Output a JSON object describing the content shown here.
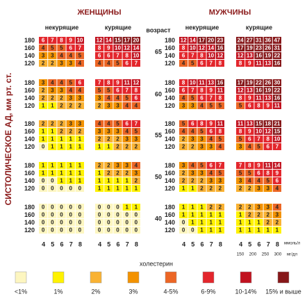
{
  "women_header": "ЖЕНЩИНЫ",
  "men_header": "МУЖЧИНЫ",
  "y_axis_label": "СИСТОЛИЧЕСКОЕ АД, мм рт. ст.",
  "age_header": "возраст",
  "ages": [
    65,
    60,
    55,
    50,
    40
  ],
  "sbp": [
    180,
    160,
    140,
    120
  ],
  "cholesterol_mmol": [
    4,
    5,
    6,
    7,
    8
  ],
  "mmol_unit": "ммоль/л",
  "cholesterol_mgdl": [
    150,
    200,
    250,
    300
  ],
  "mgdl_unit": "мг/дл",
  "cholesterol_label": "холестерин",
  "panels": [
    {
      "label": "некурящие",
      "blocks": [
        [
          [
            6,
            7,
            8,
            9,
            10
          ],
          [
            4,
            5,
            5,
            6,
            7
          ],
          [
            3,
            3,
            4,
            4,
            5
          ],
          [
            2,
            2,
            3,
            3,
            4
          ]
        ],
        [
          [
            3,
            4,
            4,
            5,
            6
          ],
          [
            2,
            3,
            3,
            4,
            4
          ],
          [
            2,
            2,
            2,
            3,
            3
          ],
          [
            1,
            1,
            2,
            2,
            2
          ]
        ],
        [
          [
            2,
            2,
            2,
            3,
            3
          ],
          [
            1,
            1,
            2,
            2,
            2
          ],
          [
            1,
            1,
            1,
            1,
            1
          ],
          [
            0,
            1,
            1,
            1,
            1
          ]
        ],
        [
          [
            1,
            1,
            1,
            1,
            1
          ],
          [
            1,
            1,
            1,
            1,
            1
          ],
          [
            0,
            0,
            1,
            1,
            1
          ],
          [
            0,
            0,
            0,
            0,
            0
          ]
        ],
        [
          [
            0,
            0,
            0,
            0,
            0
          ],
          [
            0,
            0,
            0,
            0,
            0
          ],
          [
            0,
            0,
            0,
            0,
            0
          ],
          [
            0,
            0,
            0,
            0,
            0
          ]
        ]
      ]
    },
    {
      "label": "курящие",
      "blocks": [
        [
          [
            12,
            14,
            15,
            17,
            20
          ],
          [
            8,
            9,
            10,
            12,
            14
          ],
          [
            6,
            6,
            7,
            8,
            10
          ],
          [
            4,
            4,
            5,
            6,
            7
          ]
        ],
        [
          [
            7,
            8,
            9,
            11,
            12
          ],
          [
            5,
            5,
            6,
            7,
            8
          ],
          [
            3,
            4,
            4,
            5,
            6
          ],
          [
            2,
            3,
            3,
            4,
            4
          ]
        ],
        [
          [
            4,
            4,
            5,
            6,
            7
          ],
          [
            3,
            3,
            3,
            4,
            5
          ],
          [
            2,
            2,
            2,
            3,
            3
          ],
          [
            1,
            1,
            2,
            2,
            2
          ]
        ],
        [
          [
            2,
            2,
            3,
            3,
            4
          ],
          [
            1,
            2,
            2,
            2,
            3
          ],
          [
            1,
            1,
            1,
            1,
            2
          ],
          [
            1,
            1,
            1,
            1,
            1
          ]
        ],
        [
          [
            0,
            0,
            0,
            1,
            1
          ],
          [
            0,
            0,
            0,
            0,
            0
          ],
          [
            0,
            0,
            0,
            0,
            0
          ],
          [
            0,
            0,
            0,
            0,
            0
          ]
        ]
      ]
    },
    {
      "label": "некурящие",
      "blocks": [
        [
          [
            12,
            14,
            17,
            20,
            23
          ],
          [
            8,
            10,
            12,
            14,
            16
          ],
          [
            6,
            7,
            8,
            10,
            12
          ],
          [
            4,
            5,
            6,
            7,
            8
          ]
        ],
        [
          [
            8,
            10,
            11,
            13,
            16
          ],
          [
            6,
            7,
            8,
            9,
            11
          ],
          [
            4,
            5,
            6,
            7,
            8
          ],
          [
            3,
            3,
            4,
            5,
            5
          ]
        ],
        [
          [
            5,
            6,
            8,
            9,
            11
          ],
          [
            4,
            4,
            5,
            6,
            8
          ],
          [
            2,
            3,
            3,
            4,
            5
          ],
          [
            2,
            2,
            3,
            3,
            4
          ]
        ],
        [
          [
            3,
            4,
            5,
            6,
            7
          ],
          [
            2,
            3,
            3,
            4,
            5
          ],
          [
            2,
            2,
            2,
            3,
            3
          ],
          [
            1,
            1,
            2,
            2,
            2
          ]
        ],
        [
          [
            1,
            1,
            1,
            2,
            2
          ],
          [
            1,
            1,
            1,
            1,
            1
          ],
          [
            0,
            1,
            1,
            1,
            1
          ],
          [
            0,
            0,
            1,
            1,
            1
          ]
        ]
      ]
    },
    {
      "label": "курящие",
      "blocks": [
        [
          [
            24,
            27,
            31,
            36,
            47
          ],
          [
            17,
            19,
            23,
            26,
            31
          ],
          [
            12,
            13,
            16,
            19,
            22
          ],
          [
            8,
            9,
            11,
            13,
            16
          ]
        ],
        [
          [
            17,
            19,
            22,
            26,
            30
          ],
          [
            12,
            13,
            16,
            19,
            22
          ],
          [
            8,
            9,
            11,
            13,
            16
          ],
          [
            5,
            6,
            8,
            9,
            11
          ]
        ],
        [
          [
            11,
            13,
            15,
            18,
            21
          ],
          [
            8,
            9,
            10,
            12,
            15
          ],
          [
            5,
            6,
            7,
            8,
            10
          ],
          [
            3,
            4,
            5,
            6,
            7
          ]
        ],
        [
          [
            7,
            8,
            9,
            11,
            14
          ],
          [
            5,
            5,
            6,
            8,
            9
          ],
          [
            3,
            4,
            4,
            5,
            6
          ],
          [
            2,
            2,
            3,
            3,
            4
          ]
        ],
        [
          [
            2,
            2,
            3,
            3,
            4
          ],
          [
            1,
            2,
            2,
            2,
            3
          ],
          [
            1,
            1,
            1,
            2,
            2
          ],
          [
            1,
            1,
            1,
            1,
            1
          ]
        ]
      ]
    }
  ],
  "legend": [
    {
      "label": "<1%",
      "color": "#fdf6c0"
    },
    {
      "label": "1%",
      "color": "#fff200"
    },
    {
      "label": "2%",
      "color": "#f9b233"
    },
    {
      "label": "3%",
      "color": "#f39200"
    },
    {
      "label": "4-5%",
      "color": "#ec6625"
    },
    {
      "label": "6-9%",
      "color": "#e3262c"
    },
    {
      "label": "10-14%",
      "color": "#c1121f"
    },
    {
      "label": "15% и выше",
      "color": "#861719"
    }
  ]
}
